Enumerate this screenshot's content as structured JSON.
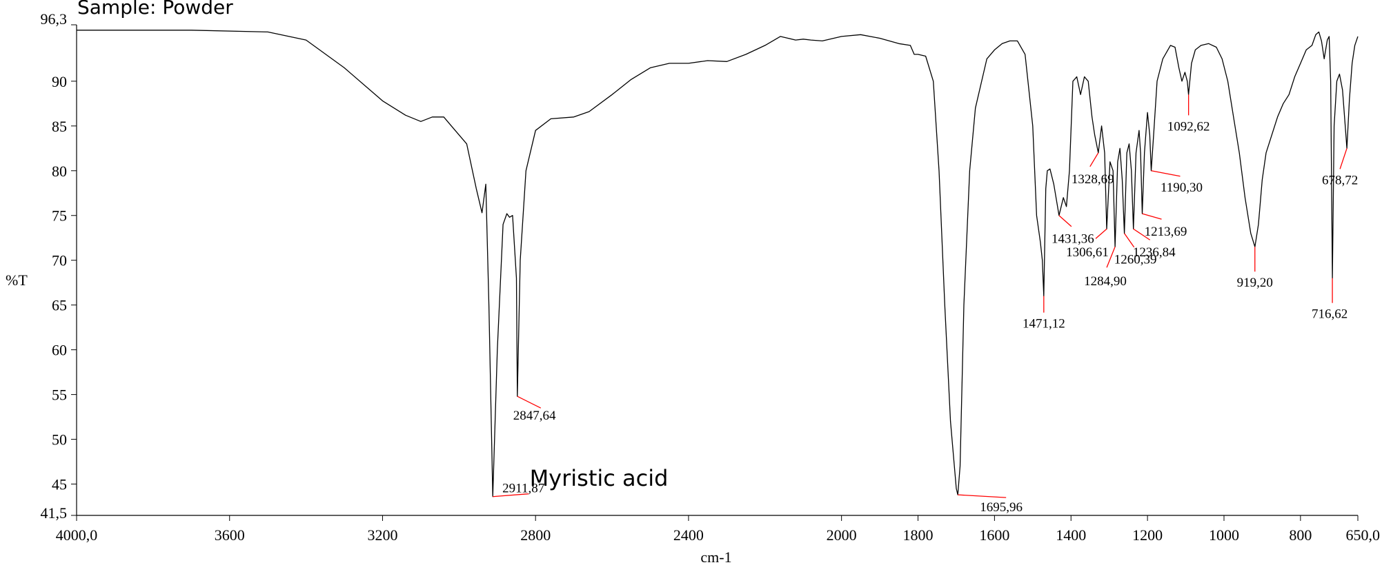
{
  "chart_data": {
    "type": "line",
    "title": "Sample: Powder",
    "annotation": "Myristic acid",
    "xlabel": "cm-1",
    "ylabel": "%T",
    "xlim": [
      4000,
      650
    ],
    "x_reversed": true,
    "ylim": [
      41.5,
      96.3
    ],
    "grid": false,
    "x_ticks": [
      {
        "value": 4000,
        "label": "4000,0"
      },
      {
        "value": 3600,
        "label": "3600"
      },
      {
        "value": 3200,
        "label": "3200"
      },
      {
        "value": 2800,
        "label": "2800"
      },
      {
        "value": 2400,
        "label": "2400"
      },
      {
        "value": 2000,
        "label": "2000"
      },
      {
        "value": 1800,
        "label": "1800"
      },
      {
        "value": 1600,
        "label": "1600"
      },
      {
        "value": 1400,
        "label": "1400"
      },
      {
        "value": 1200,
        "label": "1200"
      },
      {
        "value": 1000,
        "label": "1000"
      },
      {
        "value": 800,
        "label": "800"
      },
      {
        "value": 650,
        "label": "650,0"
      }
    ],
    "y_ticks": [
      {
        "value": 96.3,
        "label": "96,3"
      },
      {
        "value": 90,
        "label": "90"
      },
      {
        "value": 85,
        "label": "85"
      },
      {
        "value": 80,
        "label": "80"
      },
      {
        "value": 75,
        "label": "75"
      },
      {
        "value": 70,
        "label": "70"
      },
      {
        "value": 65,
        "label": "65"
      },
      {
        "value": 60,
        "label": "60"
      },
      {
        "value": 55,
        "label": "55"
      },
      {
        "value": 50,
        "label": "50"
      },
      {
        "value": 45,
        "label": "45"
      },
      {
        "value": 41.5,
        "label": "41,5"
      }
    ],
    "series": [
      {
        "color": "#000000",
        "points": [
          [
            4000,
            95.7
          ],
          [
            3900,
            95.7
          ],
          [
            3700,
            95.7
          ],
          [
            3500,
            95.5
          ],
          [
            3400,
            94.6
          ],
          [
            3300,
            91.5
          ],
          [
            3200,
            87.8
          ],
          [
            3140,
            86.2
          ],
          [
            3100,
            85.5
          ],
          [
            3070,
            86.0
          ],
          [
            3040,
            86.0
          ],
          [
            3020,
            85.0
          ],
          [
            3000,
            84.0
          ],
          [
            2980,
            83.0
          ],
          [
            2955,
            78.0
          ],
          [
            2940,
            75.3
          ],
          [
            2930,
            78.5
          ],
          [
            2922,
            65.0
          ],
          [
            2911.87,
            43.6
          ],
          [
            2900,
            60.0
          ],
          [
            2885,
            74.0
          ],
          [
            2875,
            75.2
          ],
          [
            2868,
            74.8
          ],
          [
            2860,
            75.0
          ],
          [
            2850,
            68.0
          ],
          [
            2847.64,
            54.8
          ],
          [
            2840,
            70.0
          ],
          [
            2825,
            80.0
          ],
          [
            2800,
            84.5
          ],
          [
            2760,
            85.8
          ],
          [
            2700,
            86.0
          ],
          [
            2660,
            86.6
          ],
          [
            2600,
            88.5
          ],
          [
            2550,
            90.2
          ],
          [
            2500,
            91.5
          ],
          [
            2450,
            92.0
          ],
          [
            2400,
            92.0
          ],
          [
            2350,
            92.3
          ],
          [
            2300,
            92.2
          ],
          [
            2250,
            93.0
          ],
          [
            2200,
            94.0
          ],
          [
            2160,
            95.0
          ],
          [
            2140,
            94.8
          ],
          [
            2120,
            94.6
          ],
          [
            2100,
            94.7
          ],
          [
            2080,
            94.6
          ],
          [
            2050,
            94.5
          ],
          [
            2000,
            95.0
          ],
          [
            1950,
            95.2
          ],
          [
            1900,
            94.8
          ],
          [
            1850,
            94.2
          ],
          [
            1820,
            94.0
          ],
          [
            1810,
            93.0
          ],
          [
            1800,
            93.0
          ],
          [
            1780,
            92.8
          ],
          [
            1760,
            90.0
          ],
          [
            1745,
            80.0
          ],
          [
            1730,
            65.0
          ],
          [
            1715,
            52.0
          ],
          [
            1700,
            44.5
          ],
          [
            1695.96,
            43.8
          ],
          [
            1690,
            47.0
          ],
          [
            1680,
            65.0
          ],
          [
            1665,
            80.0
          ],
          [
            1650,
            87.0
          ],
          [
            1620,
            92.5
          ],
          [
            1600,
            93.5
          ],
          [
            1580,
            94.2
          ],
          [
            1560,
            94.5
          ],
          [
            1540,
            94.5
          ],
          [
            1520,
            93.0
          ],
          [
            1500,
            85.0
          ],
          [
            1490,
            75.0
          ],
          [
            1480,
            72.0
          ],
          [
            1475,
            70.0
          ],
          [
            1471.12,
            66.0
          ],
          [
            1466,
            78.0
          ],
          [
            1462,
            80.0
          ],
          [
            1455,
            80.2
          ],
          [
            1445,
            78.5
          ],
          [
            1431.36,
            75.0
          ],
          [
            1420,
            77.0
          ],
          [
            1412,
            76.0
          ],
          [
            1404,
            80.0
          ],
          [
            1395,
            90.0
          ],
          [
            1385,
            90.5
          ],
          [
            1375,
            88.5
          ],
          [
            1365,
            90.5
          ],
          [
            1355,
            90.0
          ],
          [
            1345,
            86.0
          ],
          [
            1338,
            84.0
          ],
          [
            1328.69,
            82.0
          ],
          [
            1320,
            85.0
          ],
          [
            1312,
            82.0
          ],
          [
            1306.61,
            73.5
          ],
          [
            1298,
            81.0
          ],
          [
            1290,
            80.0
          ],
          [
            1284.9,
            71.5
          ],
          [
            1278,
            81.0
          ],
          [
            1272,
            82.5
          ],
          [
            1266,
            79.0
          ],
          [
            1260.39,
            73.0
          ],
          [
            1254,
            82.0
          ],
          [
            1248,
            83.0
          ],
          [
            1242,
            80.0
          ],
          [
            1236.84,
            73.5
          ],
          [
            1230,
            82.0
          ],
          [
            1222,
            84.5
          ],
          [
            1218,
            82.0
          ],
          [
            1213.69,
            75.2
          ],
          [
            1208,
            82.0
          ],
          [
            1200,
            86.5
          ],
          [
            1194,
            84.0
          ],
          [
            1190.3,
            80.0
          ],
          [
            1184,
            84.0
          ],
          [
            1175,
            90.0
          ],
          [
            1160,
            92.5
          ],
          [
            1140,
            94.0
          ],
          [
            1128,
            93.8
          ],
          [
            1118,
            91.5
          ],
          [
            1110,
            90.0
          ],
          [
            1102,
            91.0
          ],
          [
            1096,
            90.0
          ],
          [
            1092.62,
            88.5
          ],
          [
            1085,
            92.0
          ],
          [
            1075,
            93.5
          ],
          [
            1060,
            94.0
          ],
          [
            1040,
            94.2
          ],
          [
            1020,
            93.8
          ],
          [
            1005,
            92.5
          ],
          [
            990,
            90.0
          ],
          [
            975,
            86.0
          ],
          [
            960,
            82.0
          ],
          [
            945,
            77.0
          ],
          [
            930,
            73.0
          ],
          [
            919.2,
            71.5
          ],
          [
            910,
            74.0
          ],
          [
            900,
            79.0
          ],
          [
            890,
            82.0
          ],
          [
            875,
            84.0
          ],
          [
            860,
            86.0
          ],
          [
            845,
            87.5
          ],
          [
            830,
            88.5
          ],
          [
            815,
            90.5
          ],
          [
            800,
            92.0
          ],
          [
            785,
            93.5
          ],
          [
            770,
            94.0
          ],
          [
            760,
            95.2
          ],
          [
            752,
            95.5
          ],
          [
            745,
            94.5
          ],
          [
            738,
            92.5
          ],
          [
            730,
            94.6
          ],
          [
            725,
            95.0
          ],
          [
            721,
            90.0
          ],
          [
            716.62,
            68.0
          ],
          [
            712,
            85.0
          ],
          [
            705,
            90.0
          ],
          [
            698,
            90.8
          ],
          [
            690,
            89.0
          ],
          [
            683,
            85.0
          ],
          [
            678.72,
            82.5
          ],
          [
            672,
            88.0
          ],
          [
            665,
            92.0
          ],
          [
            658,
            94.0
          ],
          [
            650,
            95.0
          ]
        ]
      }
    ],
    "peaks": [
      {
        "x": 2911.87,
        "label": "2911,87"
      },
      {
        "x": 2847.64,
        "label": "2847,64"
      },
      {
        "x": 1695.96,
        "label": "1695,96"
      },
      {
        "x": 1471.12,
        "label": "1471,12"
      },
      {
        "x": 1431.36,
        "label": "1431,36"
      },
      {
        "x": 1328.69,
        "label": "1328,69"
      },
      {
        "x": 1306.61,
        "label": "1306,61"
      },
      {
        "x": 1284.9,
        "label": "1284,90"
      },
      {
        "x": 1260.39,
        "label": "1260,39"
      },
      {
        "x": 1236.84,
        "label": "1236,84"
      },
      {
        "x": 1213.69,
        "label": "1213,69"
      },
      {
        "x": 1190.3,
        "label": "1190,30"
      },
      {
        "x": 1092.62,
        "label": "1092,62"
      },
      {
        "x": 919.2,
        "label": "919,20"
      },
      {
        "x": 716.62,
        "label": "716,62"
      },
      {
        "x": 678.72,
        "label": "678,72"
      }
    ],
    "peak_marker_color": "#ff0000"
  }
}
